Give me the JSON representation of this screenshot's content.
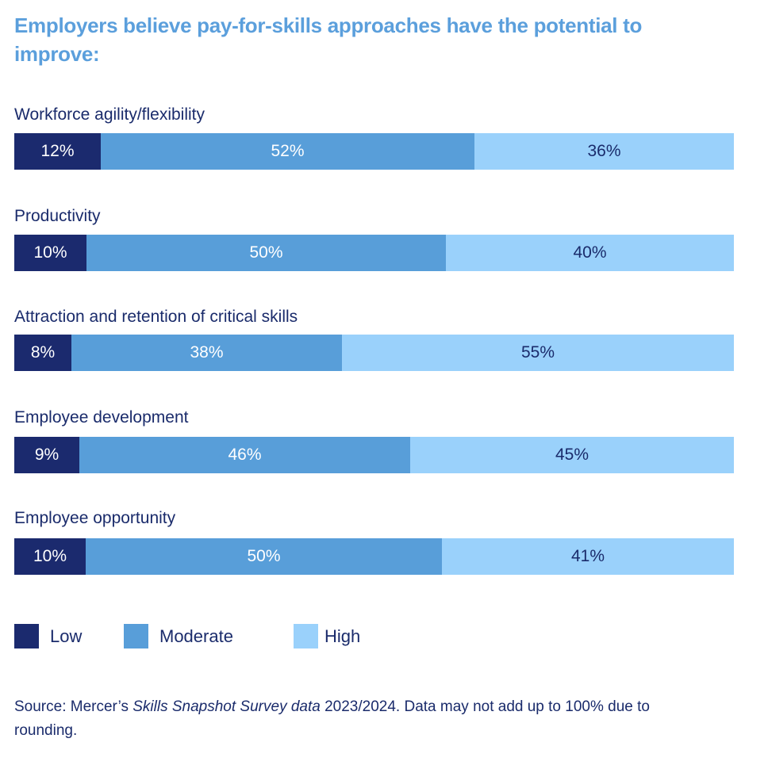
{
  "colors": {
    "low": "#1b2a6e",
    "moderate": "#589ed9",
    "high": "#9ad1fb",
    "title": "#5b9fdc",
    "text": "#1a2b6b"
  },
  "title": "Employers believe pay-for-skills approaches have the potential to improve:",
  "legend": [
    {
      "key": "low",
      "label": "Low"
    },
    {
      "key": "moderate",
      "label": "Moderate"
    },
    {
      "key": "high",
      "label": "High"
    }
  ],
  "source": {
    "prefix": "Source: Mercer’s ",
    "italic": "Skills Snapshot Survey data",
    "suffix": " 2023/2024. Data may not add up to 100% due to rounding."
  },
  "chart_data": {
    "type": "bar",
    "orientation": "horizontal",
    "stacked": true,
    "title": "Employers believe pay-for-skills approaches have the potential to improve:",
    "categories": [
      "Workforce agility/flexibility",
      "Productivity",
      "Attraction and retention of critical skills",
      "Employee development",
      "Employee opportunity"
    ],
    "series": [
      {
        "name": "Low",
        "values": [
          12,
          10,
          8,
          9,
          10
        ]
      },
      {
        "name": "Moderate",
        "values": [
          52,
          50,
          38,
          46,
          50
        ]
      },
      {
        "name": "High",
        "values": [
          36,
          40,
          55,
          45,
          41
        ]
      }
    ],
    "value_format": "percent",
    "legend_position": "bottom-left",
    "grid": false,
    "xlabel": "",
    "ylabel": "",
    "note": "Data may not add up to 100% due to rounding."
  }
}
